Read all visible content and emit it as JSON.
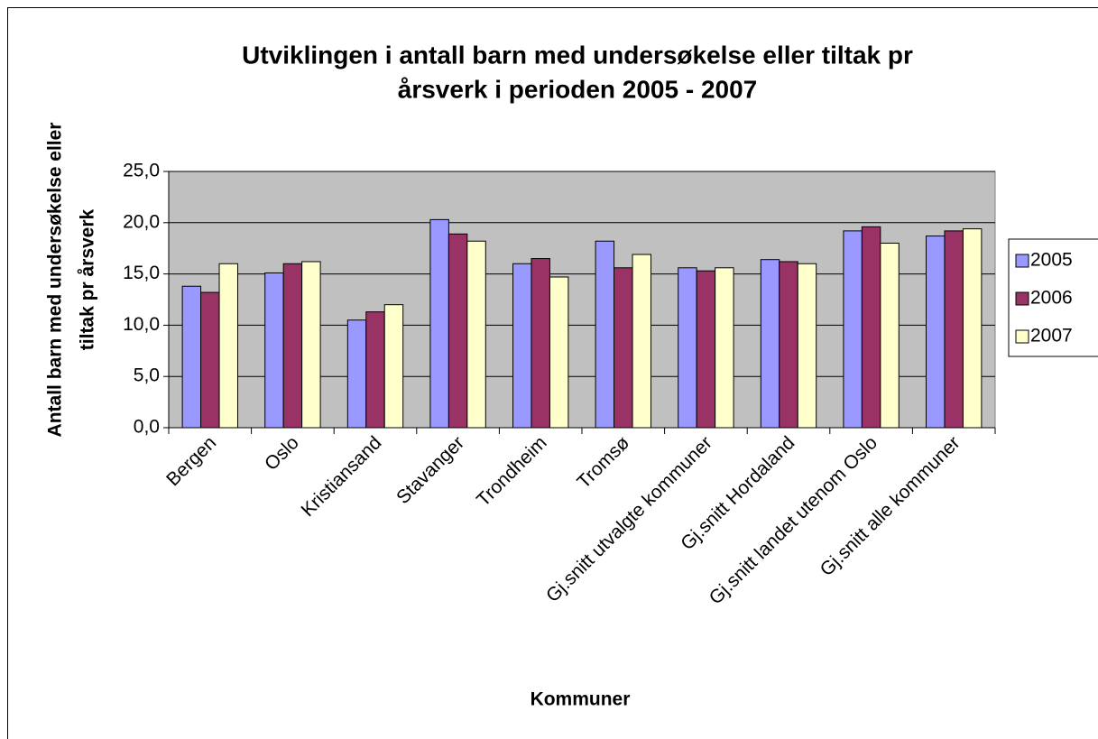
{
  "chart_data": {
    "type": "bar",
    "title": [
      "Utviklingen i antall barn med undersøkelse eller tiltak pr",
      "årsverk i perioden 2005 - 2007"
    ],
    "xlabel": "Kommuner",
    "ylabel": [
      "Antall barn med undersøkelse eller",
      "tiltak pr årsverk"
    ],
    "categories": [
      "Bergen",
      "Oslo",
      "Kristiansand",
      "Stavanger",
      "Trondheim",
      "Tromsø",
      "Gj.snitt utvalgte kommuner",
      "Gj.snitt Hordaland",
      "Gj.snitt landet utenom Oslo",
      "Gj.snitt alle kommuner"
    ],
    "series": [
      {
        "name": "2005",
        "color": "#9999ff",
        "values": [
          13.8,
          15.1,
          10.5,
          20.3,
          16.0,
          18.2,
          15.6,
          16.4,
          19.2,
          18.7
        ]
      },
      {
        "name": "2006",
        "color": "#993366",
        "values": [
          13.2,
          16.0,
          11.3,
          18.9,
          16.5,
          15.6,
          15.3,
          16.2,
          19.6,
          19.2
        ]
      },
      {
        "name": "2007",
        "color": "#ffffcc",
        "values": [
          16.0,
          16.2,
          12.0,
          18.2,
          14.7,
          16.9,
          15.6,
          16.0,
          18.0,
          19.4
        ]
      }
    ],
    "ylim": [
      0,
      25
    ],
    "yticks": [
      {
        "value": 0,
        "label": "0,0"
      },
      {
        "value": 5,
        "label": "5,0"
      },
      {
        "value": 10,
        "label": "10,0"
      },
      {
        "value": 15,
        "label": "15,0"
      },
      {
        "value": 20,
        "label": "20,0"
      },
      {
        "value": 25,
        "label": "25,0"
      }
    ],
    "grid": true,
    "plot_background": "#c0c0c0",
    "legend": "right"
  }
}
